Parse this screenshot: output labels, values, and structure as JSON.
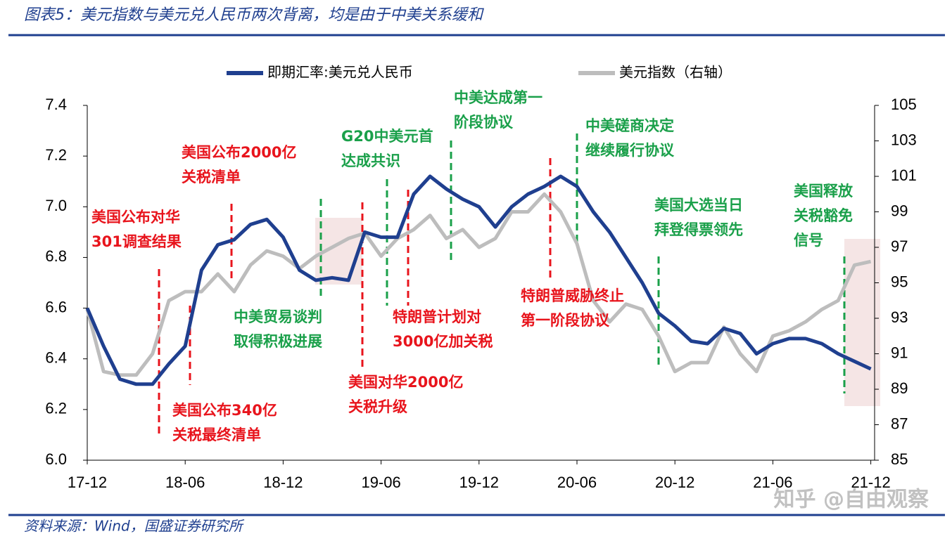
{
  "header": {
    "title": "图表5：美元指数与美元兑人民币两次背离，均是由于中美关系缓和"
  },
  "footer": {
    "source": "资料来源：Wind，国盛证券研究所"
  },
  "watermark": "知乎 @自由观察",
  "chart_data": {
    "type": "line",
    "categories": [
      "17-12",
      null,
      null,
      null,
      null,
      null,
      "18-06",
      null,
      null,
      null,
      null,
      null,
      "18-12",
      null,
      null,
      null,
      null,
      null,
      "19-06",
      null,
      null,
      null,
      null,
      null,
      "19-12",
      null,
      null,
      null,
      null,
      null,
      "20-06",
      null,
      null,
      null,
      null,
      null,
      "20-12",
      null,
      null,
      null,
      null,
      null,
      "21-06",
      null,
      null,
      null,
      null,
      null,
      "21-12"
    ],
    "series": [
      {
        "name": "即期汇率:美元兑人民币",
        "color": "#1f3f8f",
        "axis": "y",
        "values": [
          6.6,
          6.45,
          6.32,
          6.3,
          6.3,
          6.38,
          6.45,
          6.75,
          6.85,
          6.87,
          6.93,
          6.95,
          6.88,
          6.75,
          6.71,
          6.72,
          6.71,
          6.9,
          6.88,
          6.88,
          7.05,
          7.12,
          7.07,
          7.03,
          7.0,
          6.92,
          7.0,
          7.05,
          7.08,
          7.12,
          7.08,
          6.98,
          6.9,
          6.8,
          6.7,
          6.58,
          6.53,
          6.47,
          6.46,
          6.52,
          6.5,
          6.42,
          6.46,
          6.48,
          6.48,
          6.46,
          6.42,
          6.39,
          6.36
        ]
      },
      {
        "name": "美元指数（右轴）",
        "color": "#bdbdbd",
        "axis": "y2",
        "values": [
          93.5,
          90,
          89.8,
          89.8,
          91,
          94,
          94.5,
          94.5,
          95.5,
          94.5,
          96,
          96.8,
          96.5,
          95.8,
          96.5,
          97,
          97.5,
          97.8,
          96.5,
          97.5,
          98,
          98.8,
          97.5,
          98,
          97,
          97.5,
          99,
          99,
          100,
          99,
          97.2,
          94,
          92.8,
          93.8,
          93.5,
          92,
          90,
          90.5,
          90.5,
          92.5,
          91,
          90,
          92,
          92.3,
          92.8,
          93.5,
          94,
          96,
          96.2
        ]
      }
    ],
    "ylim": [
      6.0,
      7.4
    ],
    "yticks": [
      {
        "value": 6.0,
        "label": "6.0"
      },
      6.2,
      6.4,
      6.6,
      6.8,
      {
        "value": 7.0,
        "label": "7.0"
      },
      7.2,
      7.4
    ],
    "y2lim": [
      85,
      105
    ],
    "y2ticks": [
      85,
      87,
      89,
      91,
      93,
      95,
      97,
      99,
      101,
      103,
      105
    ],
    "legend": "top",
    "annotations": [
      {
        "lines": [
          "美国公布对华",
          "301调查结果"
        ],
        "color": "#e8141c"
      },
      {
        "lines": [
          "美国公布2000亿",
          "关税清单"
        ],
        "color": "#e8141c"
      },
      {
        "lines": [
          "美国公布340亿",
          "关税最终清单"
        ],
        "color": "#e8141c"
      },
      {
        "lines": [
          "中美贸易谈判",
          "取得积极进展"
        ],
        "color": "#1aa04a"
      },
      {
        "lines": [
          "美国对华2000亿",
          "关税升级"
        ],
        "color": "#e8141c"
      },
      {
        "lines": [
          "G20中美元首",
          "达成共识"
        ],
        "color": "#1aa04a"
      },
      {
        "lines": [
          "特朗普计划对",
          "3000亿加关税"
        ],
        "color": "#e8141c"
      },
      {
        "lines": [
          "中美达成第一",
          "阶段协议"
        ],
        "color": "#1aa04a"
      },
      {
        "lines": [
          "特朗普威胁终止",
          "第一阶段协议"
        ],
        "color": "#e8141c"
      },
      {
        "lines": [
          "中美磋商决定",
          "继续履行协议"
        ],
        "color": "#1aa04a"
      },
      {
        "lines": [
          "美国大选当日",
          "拜登得票领先"
        ],
        "color": "#1aa04a"
      },
      {
        "lines": [
          "美国释放",
          "关税豁免",
          "信号"
        ],
        "color": "#1aa04a"
      }
    ]
  }
}
